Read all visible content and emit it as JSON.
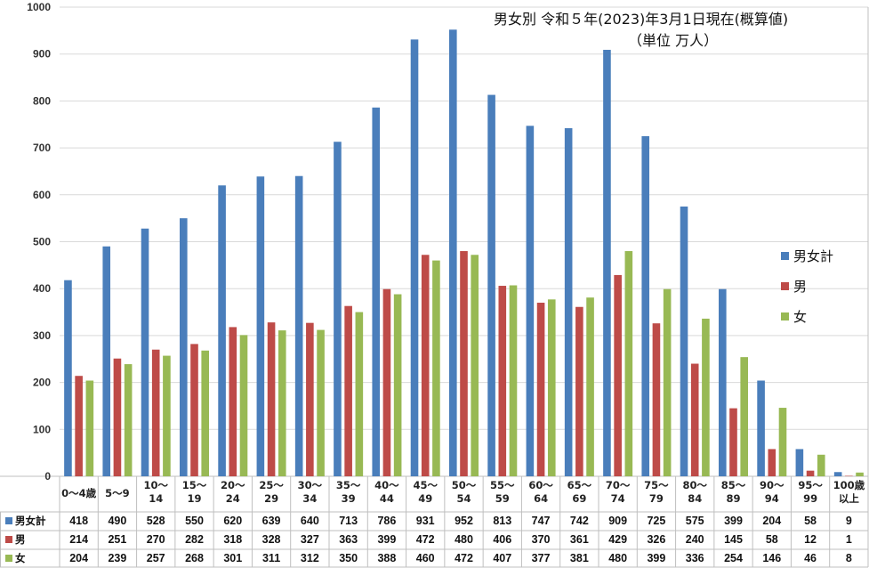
{
  "chart_data": {
    "type": "bar",
    "title": "男女別  令和５年(2023)年3月1日現在(概算値)",
    "subtitle": "（単位  万人）",
    "categories": [
      [
        "0～4歳"
      ],
      [
        "5～9"
      ],
      [
        "10～",
        "14"
      ],
      [
        "15～",
        "19"
      ],
      [
        "20～",
        "24"
      ],
      [
        "25～",
        "29"
      ],
      [
        "30～",
        "34"
      ],
      [
        "35～",
        "39"
      ],
      [
        "40～",
        "44"
      ],
      [
        "45～",
        "49"
      ],
      [
        "50～",
        "54"
      ],
      [
        "55～",
        "59"
      ],
      [
        "60～",
        "64"
      ],
      [
        "65～",
        "69"
      ],
      [
        "70～",
        "74"
      ],
      [
        "75～",
        "79"
      ],
      [
        "80～",
        "84"
      ],
      [
        "85～",
        "89"
      ],
      [
        "90～",
        "94"
      ],
      [
        "95～",
        "99"
      ],
      [
        "100歳",
        "以上"
      ]
    ],
    "series": [
      {
        "name": "男女計",
        "color": "#4a7ebb",
        "values": [
          418,
          490,
          528,
          550,
          620,
          639,
          640,
          713,
          786,
          931,
          952,
          813,
          747,
          742,
          909,
          725,
          575,
          399,
          204,
          58,
          9
        ]
      },
      {
        "name": "男",
        "color": "#be4b48",
        "values": [
          214,
          251,
          270,
          282,
          318,
          328,
          327,
          363,
          399,
          472,
          480,
          406,
          370,
          361,
          429,
          326,
          240,
          145,
          58,
          12,
          1
        ]
      },
      {
        "name": "女",
        "color": "#98b954",
        "values": [
          204,
          239,
          257,
          268,
          301,
          311,
          312,
          350,
          388,
          460,
          472,
          407,
          377,
          381,
          480,
          399,
          336,
          254,
          146,
          46,
          8
        ]
      }
    ],
    "yticks": [
      "0",
      "100",
      "200",
      "300",
      "400",
      "500",
      "600",
      "700",
      "800",
      "900",
      "1000"
    ],
    "ylim": [
      0,
      1000
    ],
    "grid": true,
    "legend": "right",
    "data_table": true
  }
}
